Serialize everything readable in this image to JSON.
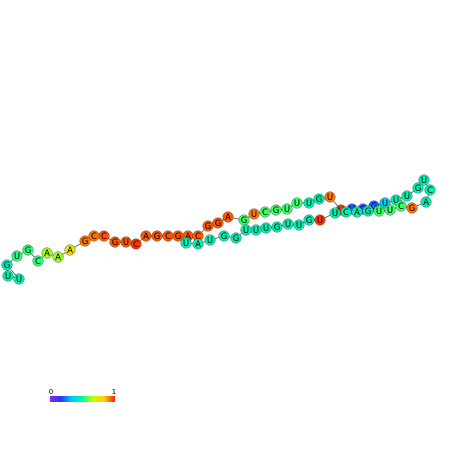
{
  "structure": {
    "nucleotides": [
      {
        "base": "U",
        "p": 0.45
      },
      {
        "base": "U",
        "p": 0.45
      },
      {
        "base": "G",
        "p": 0.45
      },
      {
        "base": "U",
        "p": 0.53
      },
      {
        "base": "G",
        "p": 0.53
      },
      {
        "base": "C",
        "p": 0.53
      },
      {
        "base": "A",
        "p": 0.63
      },
      {
        "base": "A",
        "p": 0.63
      },
      {
        "base": "A",
        "p": 0.78
      },
      {
        "base": "G",
        "p": 0.92
      },
      {
        "base": "C",
        "p": 0.92
      },
      {
        "base": "C",
        "p": 0.95
      },
      {
        "base": "G",
        "p": 0.95
      },
      {
        "base": "U",
        "p": 0.95
      },
      {
        "base": "C",
        "p": 0.98
      },
      {
        "base": "A",
        "p": 0.95
      },
      {
        "base": "G",
        "p": 0.95
      },
      {
        "base": "C",
        "p": 0.95
      },
      {
        "base": "G",
        "p": 0.95
      },
      {
        "base": "A",
        "p": 0.95
      },
      {
        "base": "C",
        "p": 0.95
      },
      {
        "base": "G",
        "p": 0.95
      },
      {
        "base": "G",
        "p": 0.95
      },
      {
        "base": "A",
        "p": 0.95
      },
      {
        "base": "G",
        "p": 0.55
      },
      {
        "base": "U",
        "p": 0.92
      },
      {
        "base": "C",
        "p": 0.55
      },
      {
        "base": "G",
        "p": 0.55
      },
      {
        "base": "U",
        "p": 0.55
      },
      {
        "base": "U",
        "p": 0.55
      },
      {
        "base": "U",
        "p": 0.45
      },
      {
        "base": "G",
        "p": 0.45
      },
      {
        "base": "U",
        "p": 0.92
      },
      {
        "base": "U",
        "p": 0.98
      },
      {
        "base": "U",
        "p": 0.22
      },
      {
        "base": "G",
        "p": 0.22
      },
      {
        "base": "G",
        "p": 0.22
      },
      {
        "base": "U",
        "p": 0.35
      },
      {
        "base": "U",
        "p": 0.45
      },
      {
        "base": "U",
        "p": 0.45
      },
      {
        "base": "G",
        "p": 0.45
      },
      {
        "base": "U",
        "p": 0.45
      },
      {
        "base": "C",
        "p": 0.45
      },
      {
        "base": "A",
        "p": 0.45
      },
      {
        "base": "G",
        "p": 0.92
      },
      {
        "base": "C",
        "p": 0.55
      },
      {
        "base": "U",
        "p": 0.55
      },
      {
        "base": "U",
        "p": 0.55
      },
      {
        "base": "G",
        "p": 0.45
      },
      {
        "base": "A",
        "p": 0.45
      },
      {
        "base": "C",
        "p": 0.45
      },
      {
        "base": "U",
        "p": 0.45
      },
      {
        "base": "U",
        "p": 0.98
      },
      {
        "base": "G",
        "p": 0.45
      },
      {
        "base": "U",
        "p": 0.45
      },
      {
        "base": "U",
        "p": 0.45
      },
      {
        "base": "G",
        "p": 0.45
      },
      {
        "base": "U",
        "p": 0.45
      },
      {
        "base": "U",
        "p": 0.45
      },
      {
        "base": "U",
        "p": 0.45
      },
      {
        "base": "G",
        "p": 0.45
      },
      {
        "base": "G",
        "p": 0.45
      },
      {
        "base": "U",
        "p": 0.45
      },
      {
        "base": "A",
        "p": 0.45
      },
      {
        "base": "U",
        "p": 0.45
      }
    ]
  },
  "color_scale": {
    "min_label": "0",
    "max_label": "1",
    "stops": [
      "#8a2be2",
      "#3030ff",
      "#00c8ff",
      "#00ff90",
      "#c0ff00",
      "#ffd000",
      "#ff2000"
    ]
  }
}
